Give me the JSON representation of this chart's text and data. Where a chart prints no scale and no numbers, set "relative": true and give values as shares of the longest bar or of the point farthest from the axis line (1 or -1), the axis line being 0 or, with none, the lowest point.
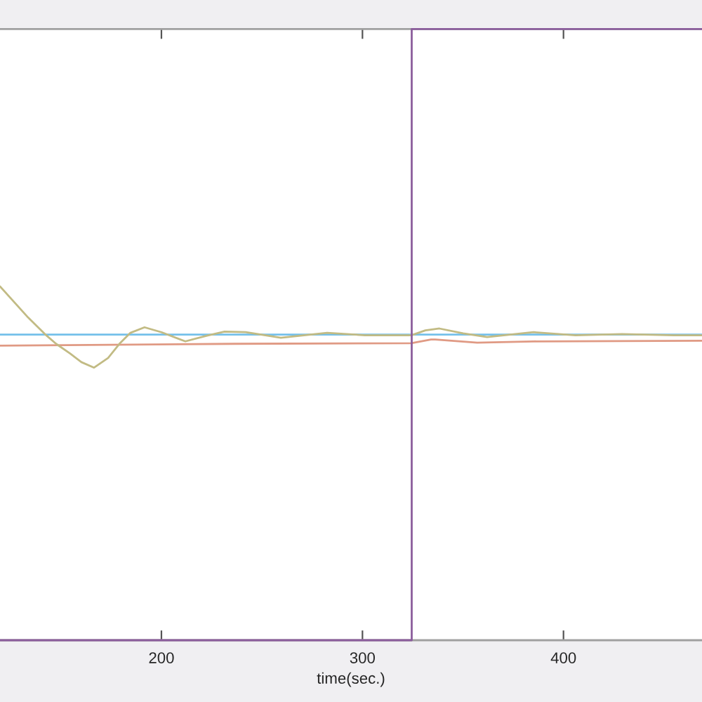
{
  "chart_data": {
    "type": "line",
    "xlabel": "time(sec.)",
    "relative": true,
    "xlim": [
      119.7,
      468.9
    ],
    "xticks": [
      200,
      300,
      400
    ],
    "tick_labels": "x",
    "series": [
      {
        "color": "#e09a84",
        "x": [
          119.7,
          236.3,
          324.3,
          334.1,
          336.2,
          357.1,
          385.1,
          468.9
        ],
        "values": [
          0.482,
          0.485,
          0.486,
          0.492,
          0.492,
          0.487,
          0.489,
          0.49
        ]
      },
      {
        "color": "#74c0ea",
        "x": [
          119.7,
          468.9
        ],
        "values": [
          0.5,
          0.5
        ]
      },
      {
        "color": "#c2bb84",
        "x": [
          119.7,
          133.7,
          142.0,
          147.6,
          154.6,
          160.2,
          166.5,
          173.5,
          179.1,
          184.6,
          191.6,
          200.0,
          211.9,
          222.3,
          231.4,
          241.9,
          259.4,
          282.4,
          301.3,
          324.3,
          331.3,
          338.3,
          350.1,
          362.0,
          385.1,
          406.0,
          429.1,
          454.9,
          468.9
        ],
        "values": [
          0.579,
          0.528,
          0.501,
          0.485,
          0.469,
          0.455,
          0.446,
          0.462,
          0.485,
          0.503,
          0.512,
          0.504,
          0.489,
          0.498,
          0.505,
          0.504,
          0.495,
          0.503,
          0.499,
          0.499,
          0.507,
          0.51,
          0.502,
          0.496,
          0.504,
          0.499,
          0.501,
          0.499,
          0.499
        ]
      },
      {
        "type": "step",
        "color": "#8b5d9c",
        "x": [
          119.7,
          324.5,
          468.9
        ],
        "values": [
          0,
          1,
          1
        ]
      }
    ]
  }
}
